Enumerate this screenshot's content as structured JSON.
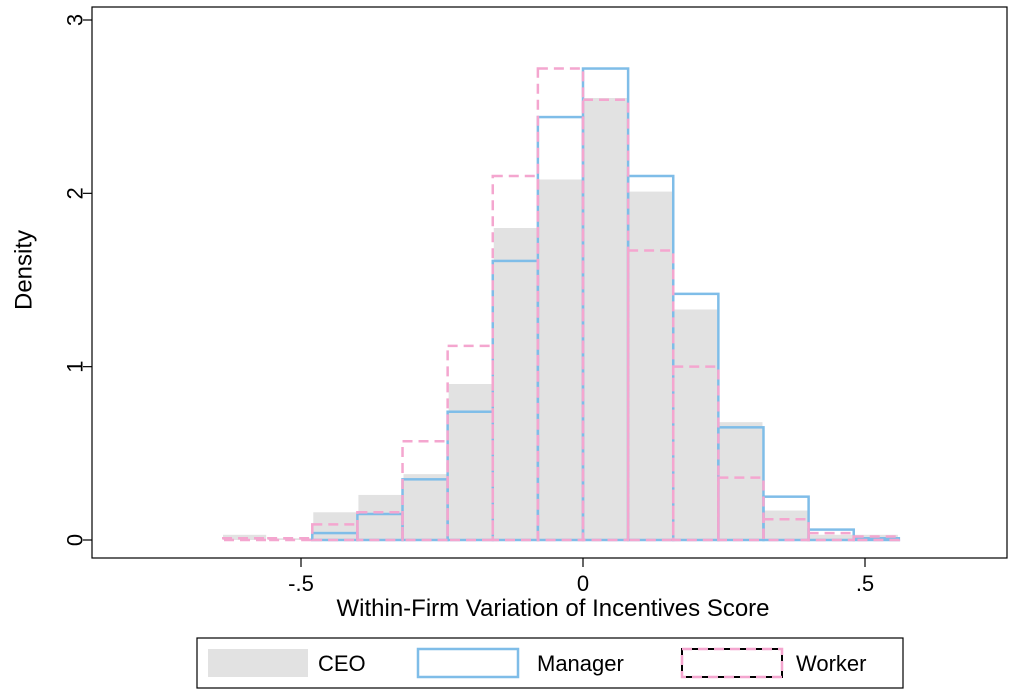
{
  "chart_data": {
    "type": "bar",
    "subtype": "histogram",
    "xlabel": "Within-Firm Variation of Incentives Score",
    "ylabel": "Density",
    "xlim": [
      -0.85,
      0.73
    ],
    "ylim": [
      0,
      3
    ],
    "x_ticks": [
      {
        "value": -0.5,
        "label": "-.5"
      },
      {
        "value": 0,
        "label": "0"
      },
      {
        "value": 0.5,
        "label": ".5"
      }
    ],
    "y_ticks": [
      {
        "value": 0,
        "label": "0"
      },
      {
        "value": 1,
        "label": "1"
      },
      {
        "value": 2,
        "label": "2"
      },
      {
        "value": 3,
        "label": "3"
      }
    ],
    "grid": false,
    "legend_position": "bottom",
    "series": [
      {
        "name": "CEO",
        "style": "filled",
        "color": "#e2e2e2",
        "bins": [
          {
            "x0": -0.64,
            "x1": -0.56,
            "y": 0.03
          },
          {
            "x0": -0.56,
            "x1": -0.48,
            "y": 0.01
          },
          {
            "x0": -0.48,
            "x1": -0.4,
            "y": 0.16
          },
          {
            "x0": -0.4,
            "x1": -0.32,
            "y": 0.26
          },
          {
            "x0": -0.32,
            "x1": -0.24,
            "y": 0.38
          },
          {
            "x0": -0.24,
            "x1": -0.16,
            "y": 0.9
          },
          {
            "x0": -0.16,
            "x1": -0.08,
            "y": 1.8
          },
          {
            "x0": -0.08,
            "x1": 0.0,
            "y": 2.08
          },
          {
            "x0": 0.0,
            "x1": 0.08,
            "y": 2.55
          },
          {
            "x0": 0.08,
            "x1": 0.16,
            "y": 2.01
          },
          {
            "x0": 0.16,
            "x1": 0.24,
            "y": 1.33
          },
          {
            "x0": 0.24,
            "x1": 0.32,
            "y": 0.68
          },
          {
            "x0": 0.32,
            "x1": 0.4,
            "y": 0.17
          },
          {
            "x0": 0.4,
            "x1": 0.48,
            "y": 0.03
          },
          {
            "x0": 0.48,
            "x1": 0.56,
            "y": 0.03
          }
        ]
      },
      {
        "name": "Manager",
        "style": "outline",
        "color": "#7fbde8",
        "bins": [
          {
            "x0": -0.64,
            "x1": -0.56,
            "y": 0.0
          },
          {
            "x0": -0.56,
            "x1": -0.48,
            "y": 0.0
          },
          {
            "x0": -0.48,
            "x1": -0.4,
            "y": 0.04
          },
          {
            "x0": -0.4,
            "x1": -0.32,
            "y": 0.15
          },
          {
            "x0": -0.32,
            "x1": -0.24,
            "y": 0.35
          },
          {
            "x0": -0.24,
            "x1": -0.16,
            "y": 0.74
          },
          {
            "x0": -0.16,
            "x1": -0.08,
            "y": 1.61
          },
          {
            "x0": -0.08,
            "x1": 0.0,
            "y": 2.44
          },
          {
            "x0": 0.0,
            "x1": 0.08,
            "y": 2.72
          },
          {
            "x0": 0.08,
            "x1": 0.16,
            "y": 2.1
          },
          {
            "x0": 0.16,
            "x1": 0.24,
            "y": 1.42
          },
          {
            "x0": 0.24,
            "x1": 0.32,
            "y": 0.65
          },
          {
            "x0": 0.32,
            "x1": 0.4,
            "y": 0.25
          },
          {
            "x0": 0.4,
            "x1": 0.48,
            "y": 0.06
          },
          {
            "x0": 0.48,
            "x1": 0.56,
            "y": 0.01
          }
        ]
      },
      {
        "name": "Worker",
        "style": "dashed-outline",
        "color": "#f4a6cf",
        "bins": [
          {
            "x0": -0.84,
            "x1": -0.72,
            "y": 0.0
          },
          {
            "x0": -0.72,
            "x1": -0.64,
            "y": 0.0
          },
          {
            "x0": -0.64,
            "x1": -0.56,
            "y": 0.01
          },
          {
            "x0": -0.56,
            "x1": -0.48,
            "y": 0.01
          },
          {
            "x0": -0.48,
            "x1": -0.4,
            "y": 0.09
          },
          {
            "x0": -0.4,
            "x1": -0.32,
            "y": 0.16
          },
          {
            "x0": -0.32,
            "x1": -0.24,
            "y": 0.57
          },
          {
            "x0": -0.24,
            "x1": -0.16,
            "y": 1.12
          },
          {
            "x0": -0.16,
            "x1": -0.08,
            "y": 2.1
          },
          {
            "x0": -0.08,
            "x1": 0.0,
            "y": 2.72
          },
          {
            "x0": 0.0,
            "x1": 0.08,
            "y": 2.54
          },
          {
            "x0": 0.08,
            "x1": 0.16,
            "y": 1.67
          },
          {
            "x0": 0.16,
            "x1": 0.24,
            "y": 1.0
          },
          {
            "x0": 0.24,
            "x1": 0.32,
            "y": 0.36
          },
          {
            "x0": 0.32,
            "x1": 0.4,
            "y": 0.12
          },
          {
            "x0": 0.4,
            "x1": 0.48,
            "y": 0.04
          },
          {
            "x0": 0.48,
            "x1": 0.56,
            "y": 0.02
          },
          {
            "x0": 0.56,
            "x1": 0.72,
            "y": 0.0
          }
        ]
      }
    ]
  }
}
